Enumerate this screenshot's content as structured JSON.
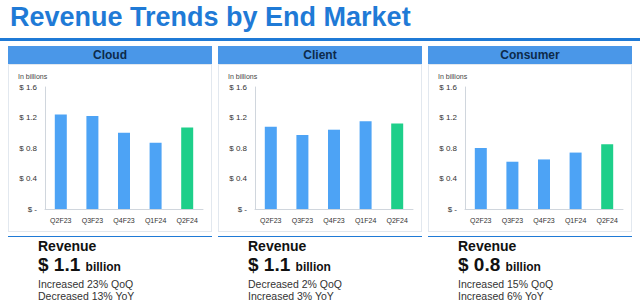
{
  "title": "Revenue Trends by End Market",
  "chart_data": [
    {
      "type": "bar",
      "title": "Cloud",
      "ylabel": "In billions",
      "categories": [
        "Q2F23",
        "Q3F23",
        "Q4F23",
        "Q1F24",
        "Q2F24"
      ],
      "values": [
        1.24,
        1.22,
        1.0,
        0.87,
        1.07
      ],
      "colors": [
        "#4da3f5",
        "#4da3f5",
        "#4da3f5",
        "#4da3f5",
        "#1ecf8a"
      ],
      "ylim": [
        0,
        1.6
      ],
      "yticks": [
        {
          "value": 0,
          "label": "$ -"
        },
        {
          "value": 0.4,
          "label": "$ 0.4"
        },
        {
          "value": 0.8,
          "label": "$ 0.8"
        },
        {
          "value": 1.2,
          "label": "$ 1.2"
        },
        {
          "value": 1.6,
          "label": "$ 1.6"
        }
      ],
      "grid": false,
      "annotations": {
        "heading": "Revenue",
        "amount": "$ 1.1",
        "unit": "billion",
        "lines": [
          "Increased 23% QoQ",
          "Decreased 13% YoY"
        ]
      }
    },
    {
      "type": "bar",
      "title": "Client",
      "ylabel": "In billions",
      "categories": [
        "Q2F23",
        "Q3F23",
        "Q4F23",
        "Q1F24",
        "Q2F24"
      ],
      "values": [
        1.08,
        0.97,
        1.04,
        1.15,
        1.12
      ],
      "colors": [
        "#4da3f5",
        "#4da3f5",
        "#4da3f5",
        "#4da3f5",
        "#1ecf8a"
      ],
      "ylim": [
        0,
        1.6
      ],
      "yticks": [
        {
          "value": 0,
          "label": "$ -"
        },
        {
          "value": 0.4,
          "label": "$ 0.4"
        },
        {
          "value": 0.8,
          "label": "$ 0.8"
        },
        {
          "value": 1.2,
          "label": "$ 1.2"
        },
        {
          "value": 1.6,
          "label": "$ 1.6"
        }
      ],
      "grid": false,
      "annotations": {
        "heading": "Revenue",
        "amount": "$ 1.1",
        "unit": "billion",
        "lines": [
          "Decreased 2% QoQ",
          "Increased 3% YoY"
        ]
      }
    },
    {
      "type": "bar",
      "title": "Consumer",
      "ylabel": "In billions",
      "categories": [
        "Q2F23",
        "Q3F23",
        "Q4F23",
        "Q1F24",
        "Q2F24"
      ],
      "values": [
        0.8,
        0.62,
        0.65,
        0.74,
        0.85
      ],
      "colors": [
        "#4da3f5",
        "#4da3f5",
        "#4da3f5",
        "#4da3f5",
        "#1ecf8a"
      ],
      "ylim": [
        0,
        1.6
      ],
      "yticks": [
        {
          "value": 0,
          "label": "$ -"
        },
        {
          "value": 0.4,
          "label": "$ 0.4"
        },
        {
          "value": 0.8,
          "label": "$ 0.8"
        },
        {
          "value": 1.2,
          "label": "$ 1.2"
        },
        {
          "value": 1.6,
          "label": "$ 1.6"
        }
      ],
      "grid": false,
      "annotations": {
        "heading": "Revenue",
        "amount": "$ 0.8",
        "unit": "billion",
        "lines": [
          "Increased 15% QoQ",
          "Increased 6% YoY"
        ]
      }
    }
  ]
}
